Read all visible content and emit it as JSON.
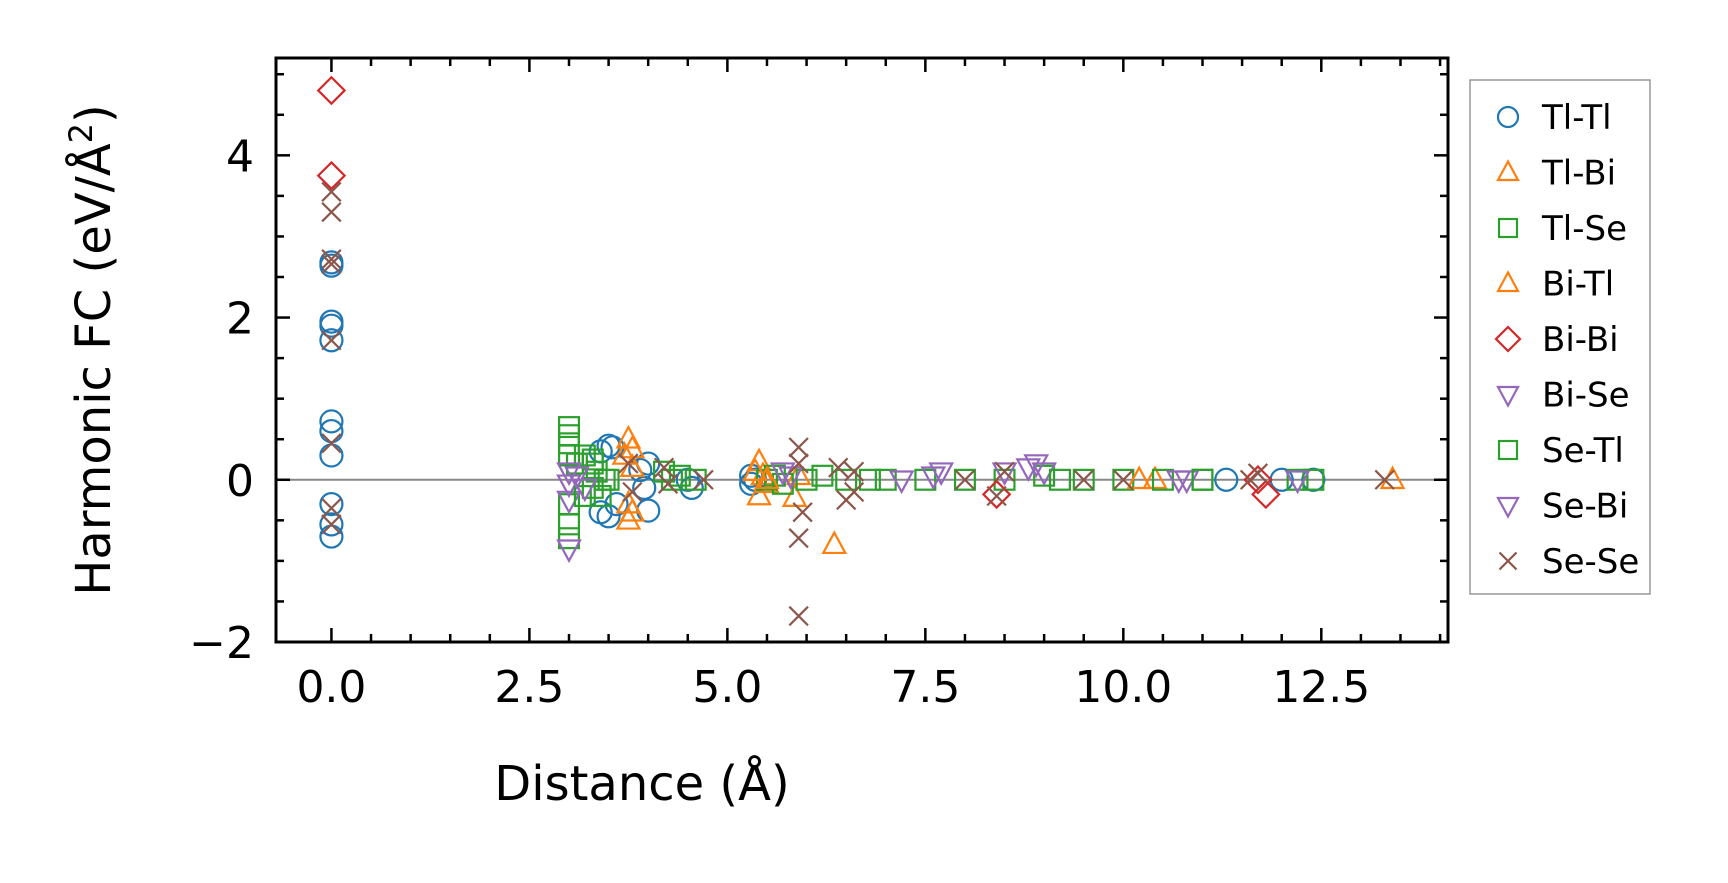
{
  "chart_data": {
    "type": "scatter",
    "title": "",
    "xlabel": "Distance (Å)",
    "ylabel_main": "Harmonic FC (eV/Å",
    "ylabel_sup": "2",
    "ylabel_close": ")",
    "xlim": [
      -0.7,
      14.1
    ],
    "ylim": [
      -2.0,
      5.2
    ],
    "xticks": [
      0.0,
      2.5,
      5.0,
      7.5,
      10.0,
      12.5
    ],
    "xtick_labels": [
      "0.0",
      "2.5",
      "5.0",
      "7.5",
      "10.0",
      "12.5"
    ],
    "yticks": [
      -2,
      0,
      2,
      4
    ],
    "ytick_labels": [
      "−2",
      "0",
      "2",
      "4"
    ],
    "zero_line": 0,
    "legend_position": "right",
    "series": [
      {
        "name": "Tl-Tl",
        "marker": "circle",
        "color": "#1f77b4",
        "points": [
          [
            0,
            2.68
          ],
          [
            0,
            2.64
          ],
          [
            0,
            1.95
          ],
          [
            0,
            1.9
          ],
          [
            0,
            1.72
          ],
          [
            0,
            0.72
          ],
          [
            0,
            0.6
          ],
          [
            0,
            0.3
          ],
          [
            0,
            -0.3
          ],
          [
            0,
            -0.55
          ],
          [
            0,
            -0.7
          ],
          [
            3.4,
            0.35
          ],
          [
            3.5,
            0.42
          ],
          [
            3.55,
            0.4
          ],
          [
            3.4,
            -0.4
          ],
          [
            3.5,
            -0.45
          ],
          [
            3.6,
            -0.3
          ],
          [
            3.9,
            0.12
          ],
          [
            3.95,
            -0.1
          ],
          [
            4.0,
            -0.38
          ],
          [
            4.0,
            0.2
          ],
          [
            4.5,
            0.0
          ],
          [
            4.55,
            -0.1
          ],
          [
            5.3,
            0.05
          ],
          [
            5.3,
            -0.05
          ],
          [
            5.35,
            0.0
          ],
          [
            11.3,
            0.0
          ],
          [
            12.0,
            0.0
          ],
          [
            12.4,
            0.0
          ]
        ]
      },
      {
        "name": "Tl-Bi",
        "marker": "triangle-up",
        "color": "#ff7f0e",
        "points": [
          [
            3.75,
            0.5
          ],
          [
            3.8,
            0.38
          ],
          [
            3.75,
            -0.3
          ],
          [
            3.75,
            -0.5
          ],
          [
            3.8,
            0.15
          ],
          [
            5.4,
            0.22
          ],
          [
            5.4,
            -0.2
          ],
          [
            5.45,
            0.05
          ],
          [
            5.5,
            -0.05
          ],
          [
            5.85,
            -0.22
          ],
          [
            5.9,
            0.05
          ],
          [
            6.35,
            -0.8
          ],
          [
            10.4,
            0.0
          ],
          [
            13.4,
            0.0
          ]
        ]
      },
      {
        "name": "Tl-Se",
        "marker": "square",
        "color": "#2ca02c",
        "points": [
          [
            3.0,
            0.65
          ],
          [
            3.0,
            0.55
          ],
          [
            3.0,
            0.45
          ],
          [
            3.0,
            0.3
          ],
          [
            3.0,
            -0.3
          ],
          [
            3.0,
            -0.55
          ],
          [
            3.0,
            -0.72
          ],
          [
            3.1,
            0.2
          ],
          [
            3.2,
            0.3
          ],
          [
            3.3,
            0.2
          ],
          [
            3.3,
            -0.1
          ],
          [
            3.35,
            0.1
          ],
          [
            3.4,
            -0.2
          ],
          [
            3.45,
            0.0
          ],
          [
            4.2,
            0.1
          ],
          [
            4.3,
            0.0
          ],
          [
            4.4,
            0.05
          ],
          [
            5.5,
            0.0
          ],
          [
            5.6,
            0.05
          ],
          [
            5.7,
            -0.05
          ],
          [
            6.0,
            0.0
          ],
          [
            6.2,
            0.05
          ],
          [
            6.5,
            0.0
          ],
          [
            7.0,
            0.0
          ],
          [
            7.5,
            0.0
          ],
          [
            8.0,
            0.0
          ],
          [
            8.5,
            0.0
          ],
          [
            9.0,
            0.05
          ],
          [
            9.5,
            0.0
          ],
          [
            10.0,
            0.0
          ],
          [
            10.5,
            0.0
          ],
          [
            11.0,
            0.0
          ],
          [
            12.2,
            0.0
          ],
          [
            12.4,
            0.0
          ]
        ]
      },
      {
        "name": "Bi-Tl",
        "marker": "triangle-up",
        "color": "#ff7f0e",
        "points": [
          [
            3.7,
            0.3
          ],
          [
            3.8,
            -0.4
          ],
          [
            5.35,
            0.1
          ],
          [
            5.5,
            0.0
          ],
          [
            10.2,
            0.0
          ]
        ]
      },
      {
        "name": "Bi-Bi",
        "marker": "diamond",
        "color": "#d62728",
        "points": [
          [
            0,
            4.8
          ],
          [
            0,
            3.75
          ],
          [
            8.4,
            -0.18
          ],
          [
            11.8,
            -0.18
          ],
          [
            11.7,
            0.0
          ]
        ]
      },
      {
        "name": "Bi-Se",
        "marker": "triangle-down",
        "color": "#9467bd",
        "points": [
          [
            3.0,
            0.1
          ],
          [
            3.0,
            -0.05
          ],
          [
            3.0,
            -0.25
          ],
          [
            3.0,
            -0.85
          ],
          [
            5.7,
            0.1
          ],
          [
            7.6,
            0.05
          ],
          [
            7.7,
            0.1
          ],
          [
            8.5,
            0.1
          ],
          [
            8.9,
            0.2
          ],
          [
            9.0,
            0.1
          ],
          [
            10.8,
            0.0
          ],
          [
            12.2,
            0.0
          ]
        ]
      },
      {
        "name": "Se-Tl",
        "marker": "square",
        "color": "#2ca02c",
        "points": [
          [
            3.2,
            -0.2
          ],
          [
            3.3,
            0.25
          ],
          [
            3.5,
            0.0
          ],
          [
            4.6,
            0.0
          ],
          [
            6.8,
            0.0
          ],
          [
            9.2,
            0.0
          ],
          [
            11.0,
            0.0
          ]
        ]
      },
      {
        "name": "Se-Bi",
        "marker": "triangle-down",
        "color": "#9467bd",
        "points": [
          [
            3.1,
            0.05
          ],
          [
            3.2,
            -0.1
          ],
          [
            5.8,
            0.05
          ],
          [
            7.2,
            0.0
          ],
          [
            8.8,
            0.15
          ],
          [
            10.7,
            0.0
          ]
        ]
      },
      {
        "name": "Se-Se",
        "marker": "x",
        "color": "#8c564b",
        "points": [
          [
            0,
            3.55
          ],
          [
            0,
            3.3
          ],
          [
            0,
            2.72
          ],
          [
            0,
            2.66
          ],
          [
            0,
            1.72
          ],
          [
            0,
            0.45
          ],
          [
            0,
            -0.35
          ],
          [
            0,
            -0.55
          ],
          [
            3.75,
            0.2
          ],
          [
            3.8,
            -0.15
          ],
          [
            4.2,
            0.15
          ],
          [
            4.25,
            -0.05
          ],
          [
            4.7,
            0.0
          ],
          [
            5.9,
            0.4
          ],
          [
            5.9,
            0.2
          ],
          [
            5.95,
            -0.4
          ],
          [
            5.9,
            -0.72
          ],
          [
            5.9,
            -1.68
          ],
          [
            6.4,
            0.15
          ],
          [
            6.5,
            -0.25
          ],
          [
            6.6,
            0.1
          ],
          [
            6.6,
            -0.15
          ],
          [
            8.0,
            0.0
          ],
          [
            8.4,
            -0.2
          ],
          [
            8.5,
            0.1
          ],
          [
            9.5,
            0.0
          ],
          [
            10.0,
            0.0
          ],
          [
            11.6,
            0.0
          ],
          [
            11.7,
            0.08
          ],
          [
            13.3,
            0.0
          ]
        ]
      }
    ]
  }
}
